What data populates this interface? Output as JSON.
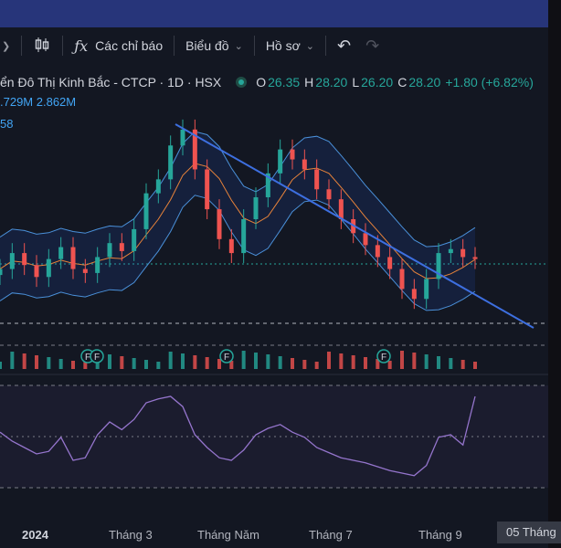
{
  "toolbar": {
    "indicators_label": "Các chỉ báo",
    "chart_type_label": "Biểu đồ",
    "profile_label": "Hồ sơ"
  },
  "legend": {
    "symbol_title": "ển Đô Thị Kinh Bắc - CTCP · 1D · HSX",
    "open_label": "O",
    "open_value": "26.35",
    "high_label": "H",
    "high_value": "28.20",
    "low_label": "L",
    "low_value": "26.20",
    "close_label": "C",
    "close_value": "28.20",
    "change": "+1.80 (+6.82%)",
    "volume_line": ".729M  2.862M",
    "indicator_value": "58"
  },
  "xaxis": {
    "labels": [
      "2024",
      "Tháng 3",
      "Tháng Năm",
      "Tháng 7",
      "Tháng 9"
    ],
    "current_date": "05 Tháng"
  },
  "markers": [
    "F",
    "F",
    "F",
    "F"
  ],
  "colors": {
    "up": "#26a69a",
    "down": "#ef5350",
    "trendline": "#3d6fe0",
    "bollinger": "#4a90d9",
    "sma": "#e8833a",
    "rsi": "#9575cd",
    "accent": "#2962ff"
  },
  "chart_data": {
    "type": "line",
    "title": "",
    "series": [
      {
        "values": [
          24.0,
          24.8,
          24.2,
          23.6,
          24.5,
          25.1,
          24.0,
          23.8,
          24.6,
          25.3,
          24.9,
          26.0,
          27.8,
          28.5,
          30.2,
          31.0,
          29.0,
          27.0,
          25.5,
          24.8,
          26.5,
          27.6,
          28.8,
          30.0,
          29.5,
          29.0,
          28.0,
          27.5,
          26.5,
          25.8,
          25.2,
          24.6,
          24.0,
          23.0,
          22.5,
          23.5,
          24.8,
          25.0,
          24.6,
          24.5
        ]
      },
      {
        "name": "RSI",
        "values": [
          62,
          55,
          50,
          45,
          47,
          58,
          40,
          42,
          60,
          70,
          64,
          72,
          85,
          88,
          90,
          82,
          60,
          50,
          42,
          40,
          48,
          60,
          65,
          68,
          62,
          58,
          50,
          46,
          42,
          40,
          38,
          35,
          32,
          30,
          28,
          36,
          58,
          60,
          52,
          90
        ]
      }
    ]
  }
}
